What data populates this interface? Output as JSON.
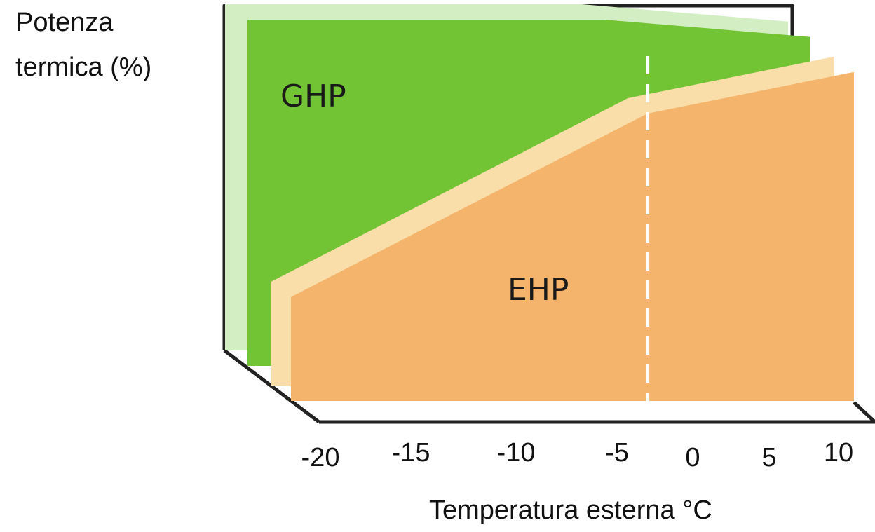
{
  "chart_data": {
    "type": "area",
    "ylabel": [
      "Potenza",
      "termica (%)"
    ],
    "xlabel": "Temperatura esterna °C",
    "x_ticks": [
      -20,
      -15,
      -10,
      -5,
      0,
      5,
      10
    ],
    "xlim": [
      -20,
      10
    ],
    "ylim": [
      0,
      100
    ],
    "reference_line_x": -1,
    "series": [
      {
        "name": "GHP",
        "color": "#72c435",
        "shade": "#d4eec4",
        "points": [
          [
            -20,
            100
          ],
          [
            -1,
            100
          ],
          [
            10,
            95
          ]
        ]
      },
      {
        "name": "EHP",
        "color": "#f4b46c",
        "shade": "#f9deaa",
        "points": [
          [
            -20,
            30
          ],
          [
            -1,
            83
          ],
          [
            10,
            95
          ]
        ]
      }
    ],
    "grid": false
  }
}
